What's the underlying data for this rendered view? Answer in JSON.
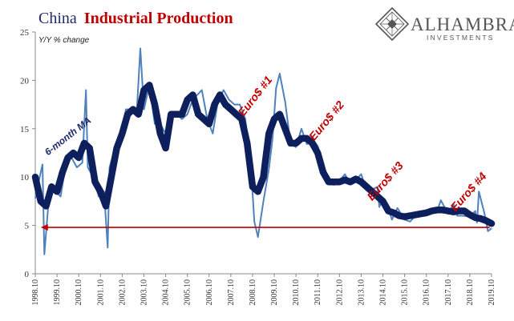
{
  "title": {
    "part1": "China",
    "part2": "Industrial Production"
  },
  "logo": {
    "name": "ALHAMBRA",
    "sub": "INVESTMENTS",
    "icon": "diamond-lattice-icon"
  },
  "colors": {
    "title1": "#1f2a6b",
    "title2": "#c00000",
    "raw": "#4f81bd",
    "ma": "#0d1f5c",
    "arrow": "#c00000",
    "axis": "#888888"
  },
  "chart_data": {
    "type": "line",
    "ylabel": "Y/Y % change",
    "ylim": [
      0,
      25
    ],
    "yticks": [
      0,
      5,
      10,
      15,
      20,
      25
    ],
    "xlim": [
      "1998-10",
      "2019-10"
    ],
    "xticks": [
      "1998.10",
      "1999.10",
      "2000.10",
      "2001.10",
      "2002.10",
      "2003.10",
      "2004.10",
      "2005.10",
      "2006.10",
      "2007.10",
      "2008.10",
      "2009.10",
      "2010.10",
      "2011.10",
      "2012.10",
      "2013.10",
      "2014.10",
      "2015.10",
      "2016.10",
      "2017.10",
      "2018.10",
      "2019.10"
    ],
    "series": [
      {
        "style": "raw",
        "x": [
          "1998-10",
          "1999-01",
          "1999-02",
          "1999-03",
          "1999-06",
          "1999-09",
          "1999-12",
          "2000-03",
          "2000-06",
          "2000-09",
          "2000-12",
          "2001-02",
          "2001-03",
          "2001-06",
          "2001-09",
          "2001-12",
          "2002-02",
          "2002-03",
          "2002-06",
          "2002-09",
          "2002-12",
          "2003-03",
          "2003-06",
          "2003-08",
          "2003-10",
          "2004-01",
          "2004-04",
          "2004-07",
          "2004-10",
          "2005-01",
          "2005-04",
          "2005-07",
          "2005-10",
          "2006-01",
          "2006-06",
          "2006-09",
          "2006-12",
          "2007-03",
          "2007-06",
          "2007-09",
          "2007-12",
          "2008-03",
          "2008-06",
          "2008-09",
          "2008-11",
          "2009-01",
          "2009-04",
          "2009-07",
          "2009-09",
          "2009-11",
          "2010-01",
          "2010-04",
          "2010-07",
          "2010-10",
          "2011-01",
          "2011-04",
          "2011-07",
          "2011-10",
          "2012-01",
          "2012-04",
          "2012-07",
          "2012-10",
          "2013-01",
          "2013-04",
          "2013-07",
          "2013-10",
          "2014-01",
          "2014-04",
          "2014-07",
          "2014-08",
          "2014-10",
          "2015-01",
          "2015-03",
          "2015-06",
          "2015-10",
          "2016-01",
          "2016-04",
          "2016-07",
          "2016-10",
          "2017-01",
          "2017-04",
          "2017-06",
          "2017-10",
          "2018-01",
          "2018-03",
          "2018-06",
          "2018-10",
          "2019-01",
          "2019-02",
          "2019-03",
          "2019-06",
          "2019-08",
          "2019-10"
        ],
        "values": [
          7.8,
          10.5,
          11.3,
          2.0,
          9.0,
          8.5,
          8.0,
          11.5,
          12.0,
          11.0,
          11.5,
          19.0,
          11.0,
          10.0,
          8.0,
          8.5,
          2.7,
          11.0,
          13.0,
          13.5,
          17.0,
          17.0,
          16.5,
          23.3,
          17.0,
          19.5,
          15.5,
          15.5,
          14.5,
          16.5,
          16.5,
          16.0,
          16.5,
          18.0,
          19.0,
          16.0,
          14.5,
          18.0,
          19.0,
          18.0,
          17.5,
          17.5,
          16.0,
          11.4,
          5.4,
          3.8,
          7.5,
          10.8,
          13.9,
          19.2,
          20.7,
          17.8,
          13.4,
          13.1,
          15.0,
          13.4,
          14.0,
          13.2,
          11.4,
          9.3,
          9.2,
          9.6,
          10.3,
          9.3,
          9.7,
          10.3,
          8.6,
          8.7,
          9.0,
          6.9,
          7.7,
          6.8,
          5.6,
          6.8,
          5.6,
          5.4,
          6.0,
          6.0,
          6.1,
          6.3,
          6.5,
          7.6,
          6.2,
          7.2,
          6.0,
          6.0,
          5.9,
          6.5,
          5.3,
          8.5,
          6.3,
          4.4,
          4.7
        ]
      },
      {
        "style": "ma",
        "x": [
          "1998-10",
          "1999-01",
          "1999-04",
          "1999-07",
          "1999-10",
          "2000-01",
          "2000-04",
          "2000-07",
          "2000-10",
          "2001-01",
          "2001-04",
          "2001-07",
          "2001-10",
          "2002-01",
          "2002-04",
          "2002-07",
          "2002-10",
          "2003-01",
          "2003-04",
          "2003-07",
          "2003-10",
          "2004-01",
          "2004-04",
          "2004-07",
          "2004-10",
          "2005-01",
          "2005-04",
          "2005-07",
          "2005-10",
          "2006-01",
          "2006-04",
          "2006-07",
          "2006-10",
          "2007-01",
          "2007-04",
          "2007-07",
          "2007-10",
          "2008-01",
          "2008-04",
          "2008-07",
          "2008-10",
          "2009-01",
          "2009-04",
          "2009-07",
          "2009-10",
          "2010-01",
          "2010-04",
          "2010-07",
          "2010-10",
          "2011-01",
          "2011-04",
          "2011-07",
          "2011-10",
          "2012-01",
          "2012-04",
          "2012-07",
          "2012-10",
          "2013-01",
          "2013-04",
          "2013-07",
          "2013-10",
          "2014-01",
          "2014-04",
          "2014-07",
          "2014-10",
          "2015-01",
          "2015-04",
          "2015-07",
          "2015-10",
          "2016-01",
          "2016-04",
          "2016-07",
          "2016-10",
          "2017-01",
          "2017-04",
          "2017-07",
          "2017-10",
          "2018-01",
          "2018-04",
          "2018-07",
          "2018-10",
          "2019-01",
          "2019-04",
          "2019-07",
          "2019-10"
        ],
        "values": [
          10.0,
          7.5,
          7.0,
          9.0,
          8.5,
          10.5,
          12.0,
          12.5,
          12.0,
          13.5,
          13.0,
          9.5,
          8.5,
          7.0,
          10.0,
          13.0,
          14.5,
          16.5,
          17.0,
          16.5,
          19.0,
          19.5,
          17.5,
          14.5,
          13.0,
          16.5,
          16.5,
          16.5,
          18.0,
          18.5,
          16.5,
          16.0,
          15.5,
          17.5,
          18.5,
          17.5,
          17.0,
          16.5,
          16.0,
          13.5,
          9.0,
          8.5,
          10.0,
          14.5,
          16.0,
          16.5,
          15.0,
          13.5,
          13.5,
          14.0,
          14.0,
          13.5,
          12.5,
          10.5,
          9.5,
          9.5,
          9.5,
          9.7,
          9.5,
          9.8,
          9.5,
          9.0,
          8.5,
          8.0,
          7.5,
          6.5,
          6.3,
          6.0,
          5.9,
          6.0,
          6.1,
          6.2,
          6.3,
          6.5,
          6.6,
          6.6,
          6.5,
          6.4,
          6.5,
          6.5,
          6.1,
          5.8,
          5.7,
          5.5,
          5.2
        ]
      }
    ],
    "annotations": [
      {
        "text": "6-month MA",
        "color": "#1f2a6b",
        "at": [
          "1999-05",
          12.2
        ],
        "angle": -38
      },
      {
        "text": "Euro$ #1",
        "color": "#c00000",
        "at": [
          "2008-05",
          16.2
        ],
        "angle": -52
      },
      {
        "text": "Euro$ #2",
        "color": "#c00000",
        "at": [
          "2011-08",
          13.7
        ],
        "angle": -50
      },
      {
        "text": "Euro$ #3",
        "color": "#c00000",
        "at": [
          "2014-04",
          7.5
        ],
        "angle": -48
      },
      {
        "text": "Euro$ #4",
        "color": "#c00000",
        "at": [
          "2018-02",
          6.4
        ],
        "angle": -48
      }
    ],
    "reference_arrow": {
      "y": 4.8,
      "from": "2019-09",
      "to": "1999-01"
    }
  }
}
